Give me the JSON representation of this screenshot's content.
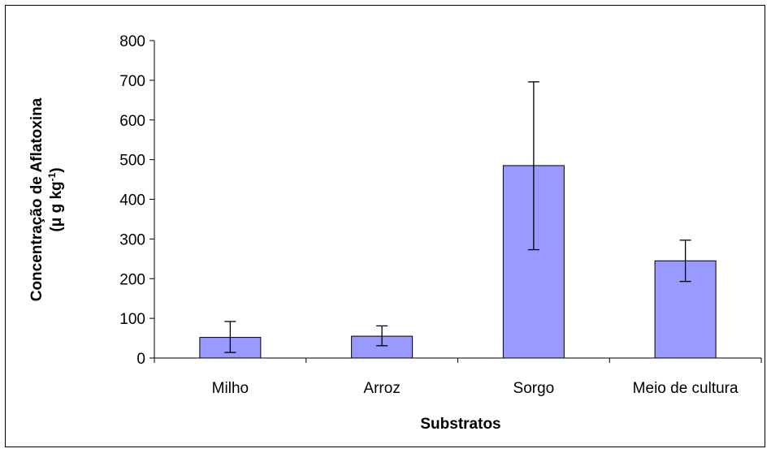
{
  "chart_data": {
    "type": "bar",
    "categories": [
      "Milho",
      "Arroz",
      "Sorgo",
      "Meio de cultura"
    ],
    "values": [
      52,
      55,
      485,
      245
    ],
    "error_low": [
      14,
      31,
      273,
      193
    ],
    "error_high": [
      92,
      81,
      696,
      297
    ],
    "title": "",
    "xlabel": "Substratos",
    "ylabel_line1": "Concentração de Aflatoxina",
    "ylabel_line2_prefix": "(μ g kg",
    "ylabel_line2_sup": "-1",
    "ylabel_line2_suffix": ")",
    "ylim": [
      0,
      800
    ],
    "yticks": [
      "0",
      "100",
      "200",
      "300",
      "400",
      "500",
      "600",
      "700",
      "800"
    ],
    "grid": false,
    "legend": "none",
    "bar_color": "#9999ff",
    "bar_stroke": "#000000"
  }
}
